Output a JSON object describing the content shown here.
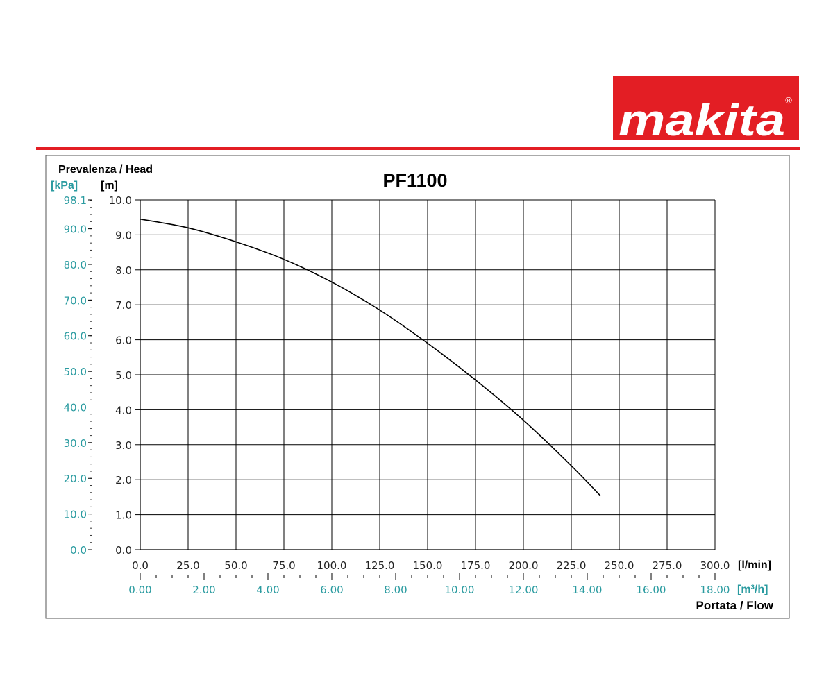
{
  "brand": {
    "name": "makita",
    "registered": "®",
    "color": "#e31e24"
  },
  "colors": {
    "teal": "#2a9ba0",
    "grid": "#000000",
    "curve": "#000000",
    "frame": "#555555"
  },
  "chart_data": {
    "type": "line",
    "title": "PF1100",
    "ylabel": "Prevalenza / Head",
    "ylabel_unit_primary": "[m]",
    "ylabel_unit_secondary": "[kPa]",
    "xlabel": "Portata / Flow",
    "xlabel_unit_primary": "[l/min]",
    "xlabel_unit_secondary": "[m³/h]",
    "xlim": [
      0,
      300
    ],
    "ylim": [
      0,
      10
    ],
    "x2lim": [
      0,
      18
    ],
    "y2lim": [
      0,
      98.1
    ],
    "x_ticks": [
      "0.0",
      "25.0",
      "50.0",
      "75.0",
      "100.0",
      "125.0",
      "150.0",
      "175.0",
      "200.0",
      "225.0",
      "250.0",
      "275.0",
      "300.0"
    ],
    "x2_ticks": [
      "0.00",
      "2.00",
      "4.00",
      "6.00",
      "8.00",
      "10.00",
      "12.00",
      "14.00",
      "16.00",
      "18.00"
    ],
    "y_ticks": [
      "0.0",
      "1.0",
      "2.0",
      "3.0",
      "4.0",
      "5.0",
      "6.0",
      "7.0",
      "8.0",
      "9.0",
      "10.0"
    ],
    "y2_ticks": [
      "0.0",
      "10.0",
      "20.0",
      "30.0",
      "40.0",
      "50.0",
      "60.0",
      "70.0",
      "80.0",
      "90.0",
      "98.1"
    ],
    "grid": true,
    "series": [
      {
        "x": [
          0,
          25,
          50,
          75,
          100,
          125,
          150,
          175,
          200,
          225,
          240
        ],
        "y": [
          9.45,
          9.2,
          8.8,
          8.3,
          7.65,
          6.85,
          5.9,
          4.85,
          3.7,
          2.4,
          1.55
        ]
      }
    ]
  }
}
